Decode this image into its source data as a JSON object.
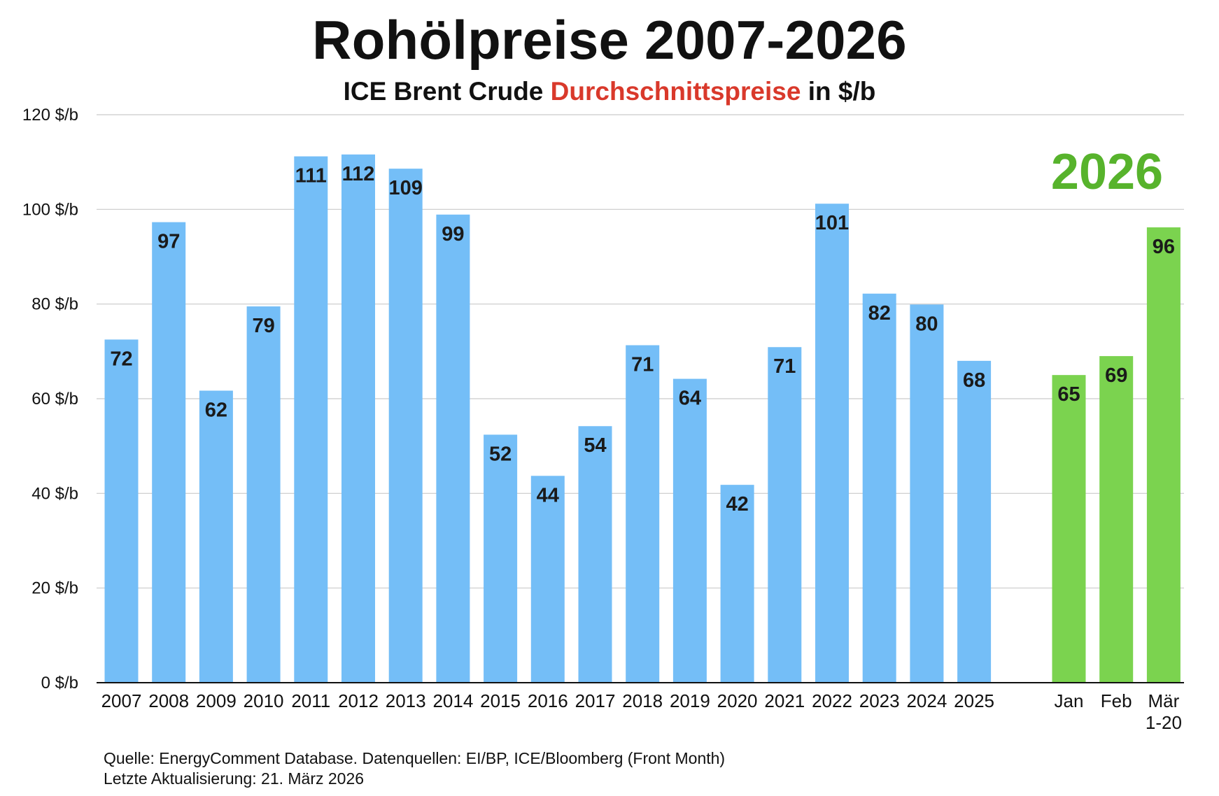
{
  "chart_data": {
    "type": "bar",
    "title": "Rohölpreise 2007-2026",
    "subtitle": {
      "prefix": "ICE Brent Crude",
      "accent": "Durchschnittspreise",
      "suffix": "in $/b"
    },
    "ylim": [
      0,
      120
    ],
    "yticks": [
      0,
      20,
      40,
      60,
      80,
      100,
      120
    ],
    "ytick_labels": [
      "0 $/b",
      "20 $/b",
      "40 $/b",
      "60 $/b",
      "80 $/b",
      "100 $/b",
      "120 $/b"
    ],
    "grid": true,
    "legend": "none",
    "categories": [
      "2007",
      "2008",
      "2009",
      "2010",
      "2011",
      "2012",
      "2013",
      "2014",
      "2015",
      "2016",
      "2017",
      "2018",
      "2019",
      "2020",
      "2021",
      "2022",
      "2023",
      "2024",
      "2025",
      "Jan",
      "Feb",
      "Mär\n1-20"
    ],
    "values": [
      72.5,
      97.3,
      61.7,
      79.5,
      111.2,
      111.6,
      108.6,
      98.9,
      52.4,
      43.7,
      54.2,
      71.3,
      64.2,
      41.8,
      70.9,
      101.2,
      82.2,
      79.9,
      68.0,
      65.0,
      69.0,
      96.2
    ],
    "data_labels": [
      "72",
      "97",
      "62",
      "79",
      "111",
      "112",
      "109",
      "99",
      "52",
      "44",
      "54",
      "71",
      "64",
      "42",
      "71",
      "101",
      "82",
      "80",
      "68",
      "65",
      "69",
      "96"
    ],
    "groups": [
      {
        "label": "",
        "categories": [
          "2007",
          "2008",
          "2009",
          "2010",
          "2011",
          "2012",
          "2013",
          "2014",
          "2015",
          "2016",
          "2017",
          "2018",
          "2019",
          "2020",
          "2021",
          "2022",
          "2023",
          "2024",
          "2025"
        ],
        "color": "#74bef7"
      },
      {
        "label": "2026",
        "categories": [
          "Jan",
          "Feb",
          "Mär\n1-20"
        ],
        "color": "#7bd34f"
      }
    ],
    "annotation": {
      "text": "2026",
      "color": "#57b32c"
    },
    "source": "Quelle: EnergyComment Database. Datenquellen: EI/BP, ICE/Bloomberg (Front Month)",
    "updated": "Letzte Aktualisierung: 21. März 2026"
  }
}
